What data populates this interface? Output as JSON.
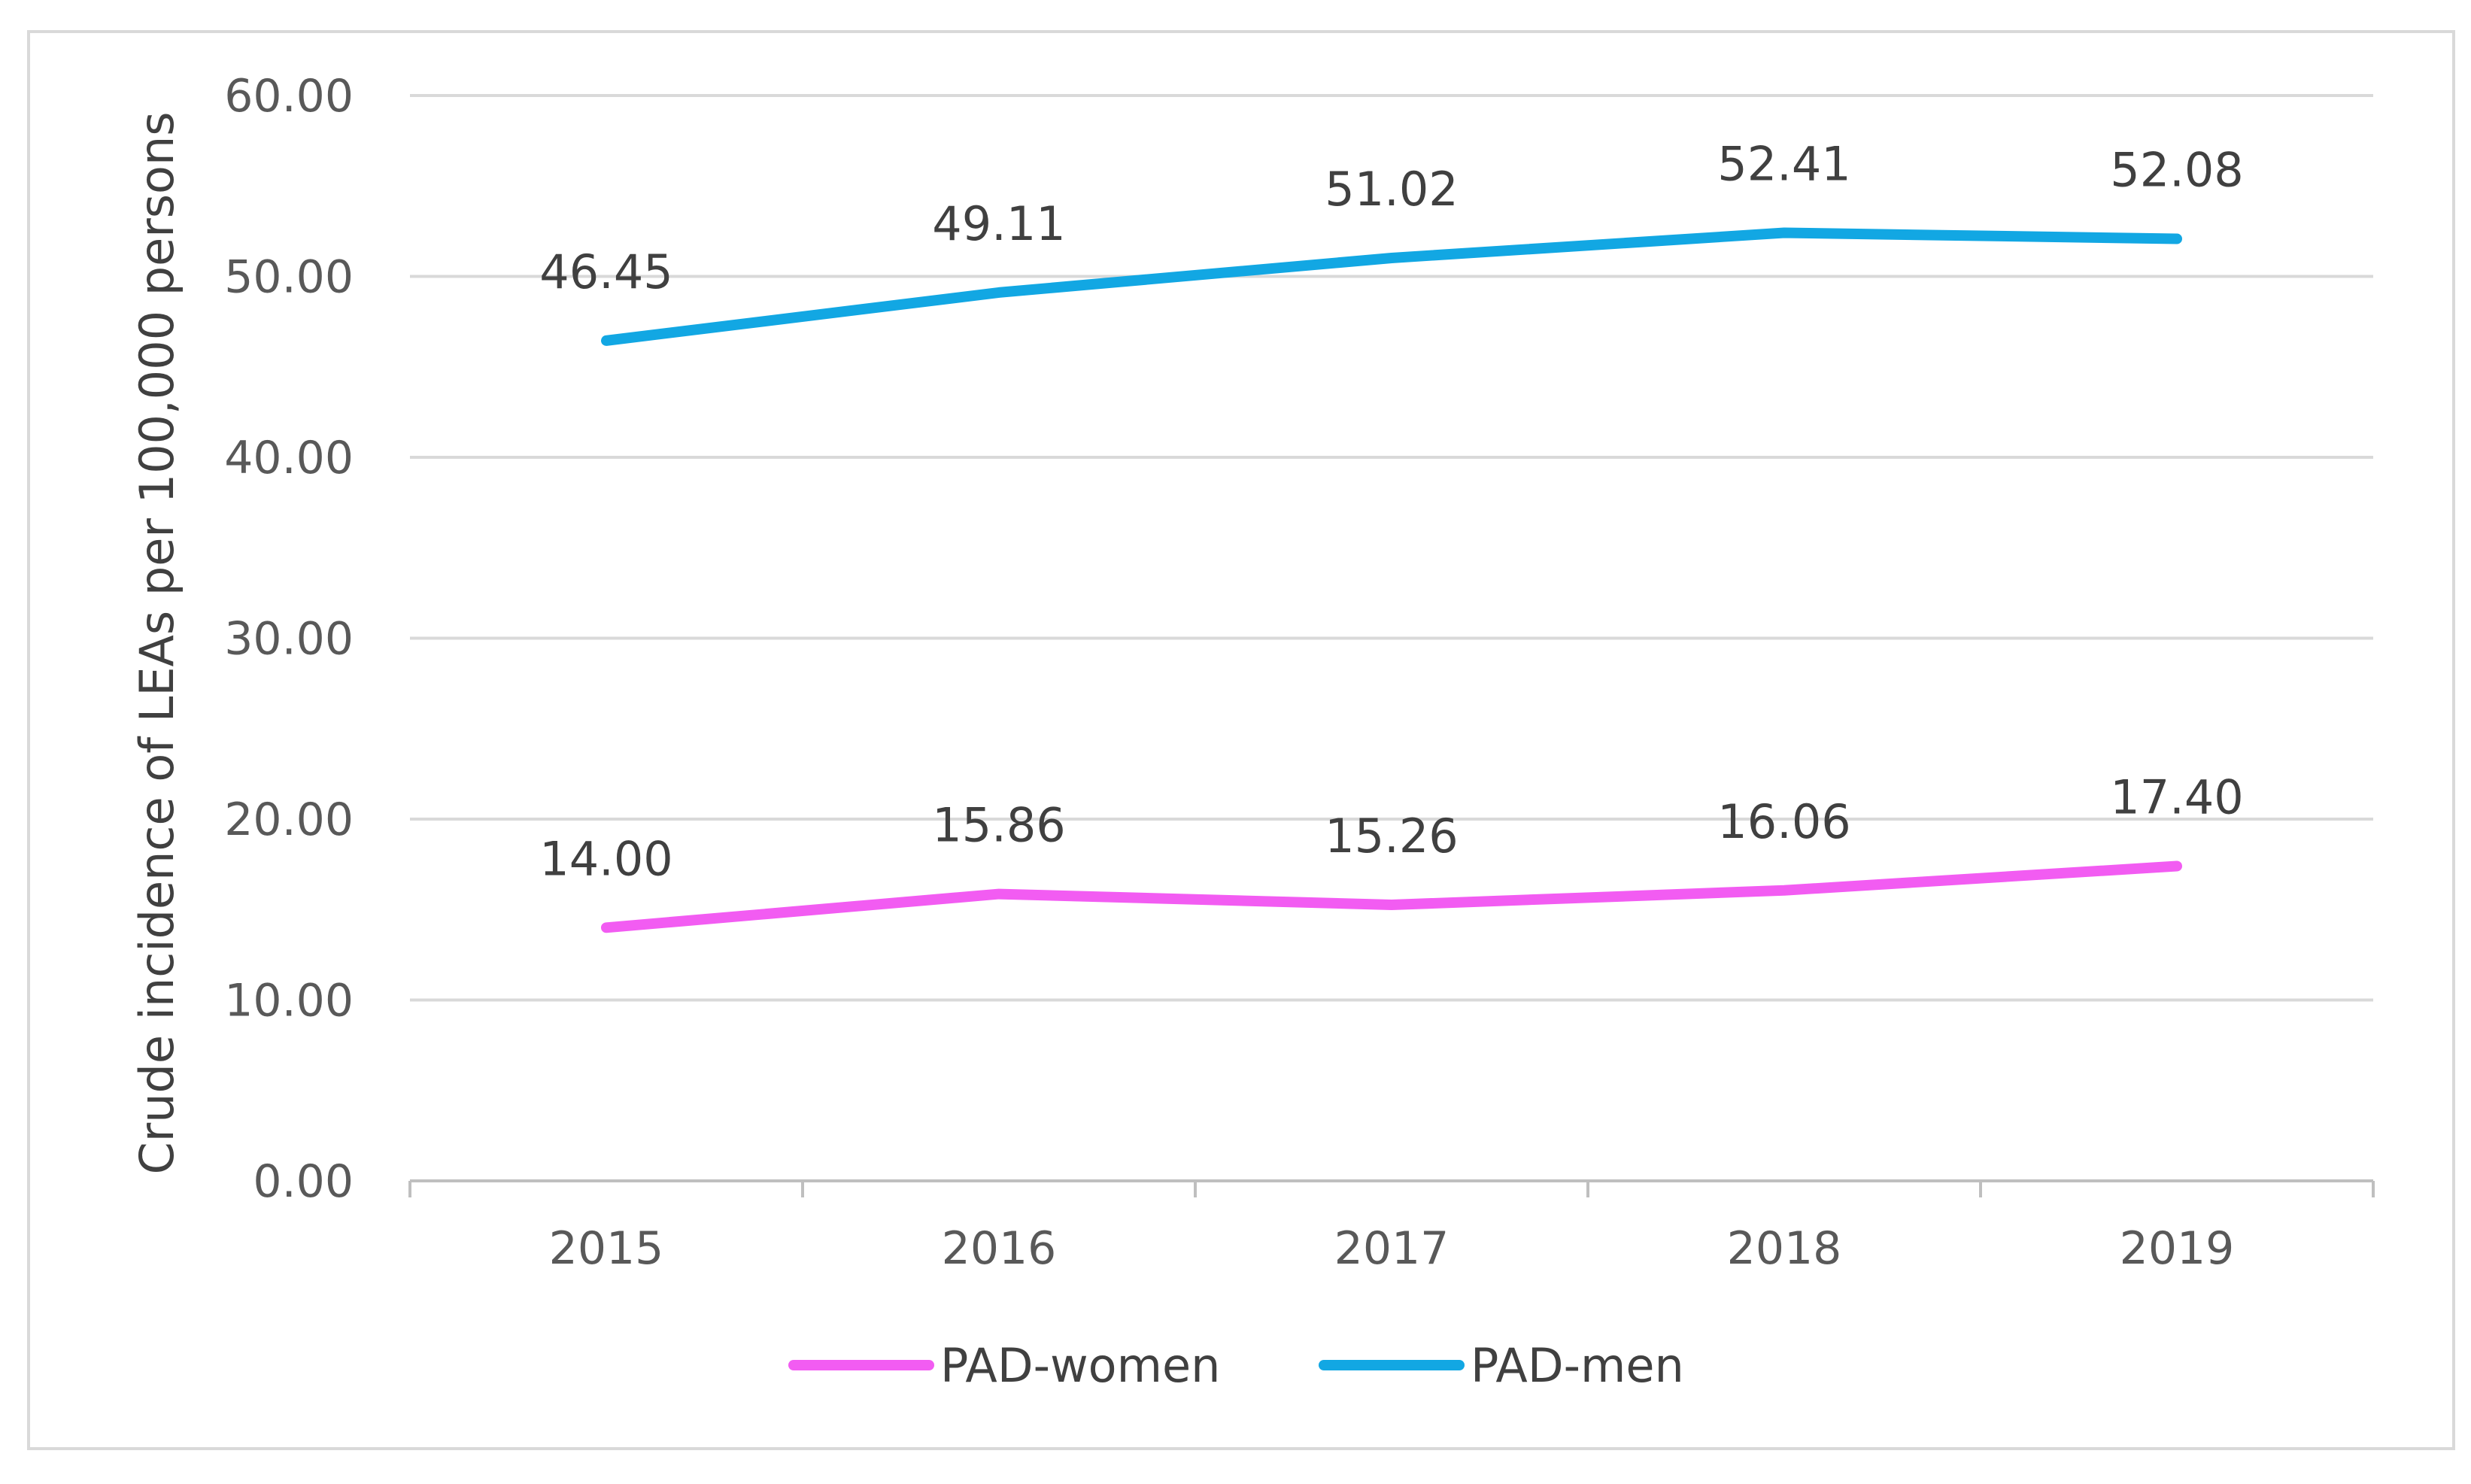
{
  "chart_data": {
    "type": "line",
    "title": "",
    "xlabel": "",
    "ylabel": "Crude incidence of LEAs per 100,000 persons",
    "categories": [
      "2015",
      "2016",
      "2017",
      "2018",
      "2019"
    ],
    "ylim": [
      0,
      60
    ],
    "yticks": [
      "0.00",
      "10.00",
      "20.00",
      "30.00",
      "40.00",
      "50.00",
      "60.00"
    ],
    "grid": true,
    "legend_position": "bottom",
    "series": [
      {
        "name": "PAD-women",
        "color": "#f25cf2",
        "values": [
          14.0,
          15.86,
          15.26,
          16.06,
          17.4
        ],
        "labels": [
          "14.00",
          "15.86",
          "15.26",
          "16.06",
          "17.40"
        ]
      },
      {
        "name": "PAD-men",
        "color": "#12a7e3",
        "values": [
          46.45,
          49.11,
          51.02,
          52.41,
          52.08
        ],
        "labels": [
          "46.45",
          "49.11",
          "51.02",
          "52.41",
          "52.08"
        ]
      }
    ]
  }
}
